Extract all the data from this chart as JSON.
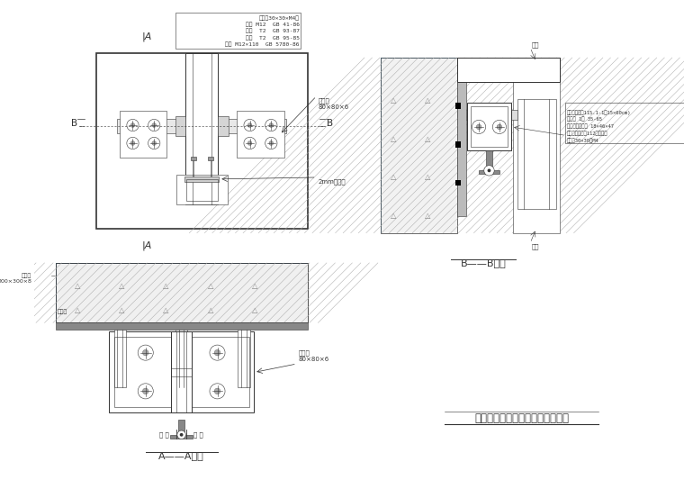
{
  "title": "明框玻璃幕墙立柱与主体连接节点",
  "bb_label": "B——B剑面",
  "aa_label": "A——A剑面",
  "line_color": "#333333",
  "note_lines": [
    "蚺栓 M12×110  GB 5780-86",
    "蚺母  T2  GB 95-85",
    "坠圈  T2  GB 93-87",
    "蚺栓 M12  GB 41-86",
    "钉板（30×30×M4）"
  ]
}
